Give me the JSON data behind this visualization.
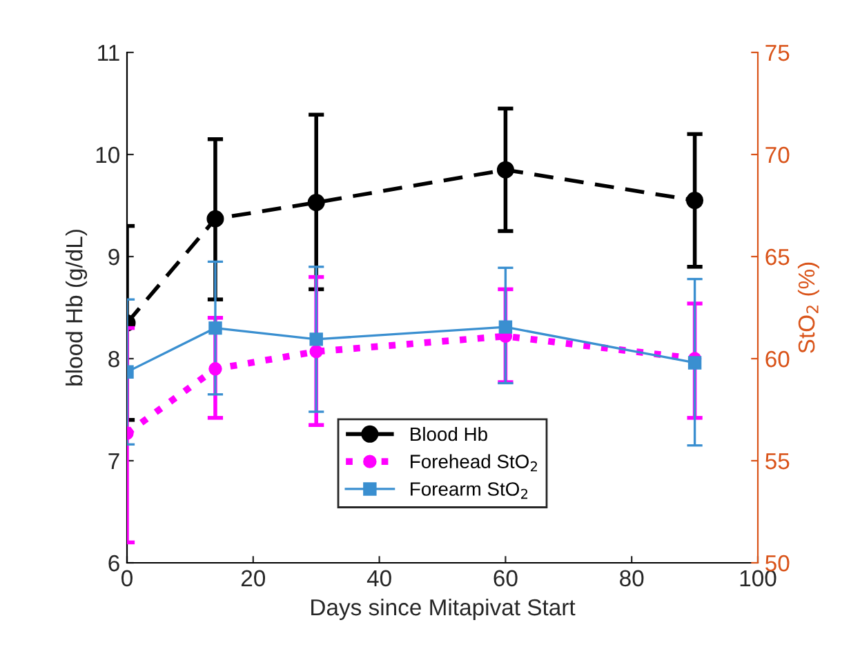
{
  "chart_data": {
    "type": "line",
    "xlabel": "Days since Mitapivat Start",
    "ylabel": "blood Hb (g/dL)",
    "y2label": "StO$_{2}$ (%)",
    "x": [
      0,
      14,
      30,
      60,
      90
    ],
    "xlim": [
      0,
      100
    ],
    "xticks": [
      0,
      20,
      40,
      60,
      80,
      100
    ],
    "ylim": [
      6,
      11
    ],
    "yticks": [
      6,
      7,
      8,
      9,
      10,
      11
    ],
    "y2lim": [
      50,
      75
    ],
    "y2ticks": [
      50,
      55,
      60,
      65,
      70,
      75
    ],
    "legend": "bottom",
    "grid": false,
    "series": [
      {
        "name": "Blood Hb",
        "color": "#000000",
        "marker": "circle",
        "line_style": "dashed",
        "values": [
          8.35,
          9.37,
          9.53,
          9.85,
          9.55
        ],
        "errors": [
          [
            7.4,
            9.3
          ],
          [
            8.58,
            10.15
          ],
          [
            8.68,
            10.39
          ],
          [
            9.25,
            10.45
          ],
          [
            8.9,
            10.2
          ]
        ]
      },
      {
        "name": "Forehead StO$_{2}$",
        "color": "#ff00ff",
        "axis": "y2",
        "marker": "circle",
        "line_style": "dotted",
        "values": [
          56.35,
          59.5,
          60.35,
          61.1,
          60.0
        ],
        "errors": [
          [
            51.0,
            61.5
          ],
          [
            57.1,
            62.0
          ],
          [
            56.75,
            64.0
          ],
          [
            58.85,
            63.4
          ],
          [
            57.1,
            62.7
          ]
        ]
      },
      {
        "name": "Forearm StO$_{2}$",
        "color": "#3a8fd0",
        "axis": "y2",
        "marker": "square",
        "line_style": "solid",
        "values": [
          59.35,
          61.5,
          60.95,
          61.55,
          59.8
        ],
        "errors": [
          [
            55.8,
            62.9
          ],
          [
            58.25,
            64.75
          ],
          [
            57.4,
            64.5
          ],
          [
            58.8,
            64.45
          ],
          [
            55.75,
            63.9
          ]
        ]
      }
    ]
  }
}
